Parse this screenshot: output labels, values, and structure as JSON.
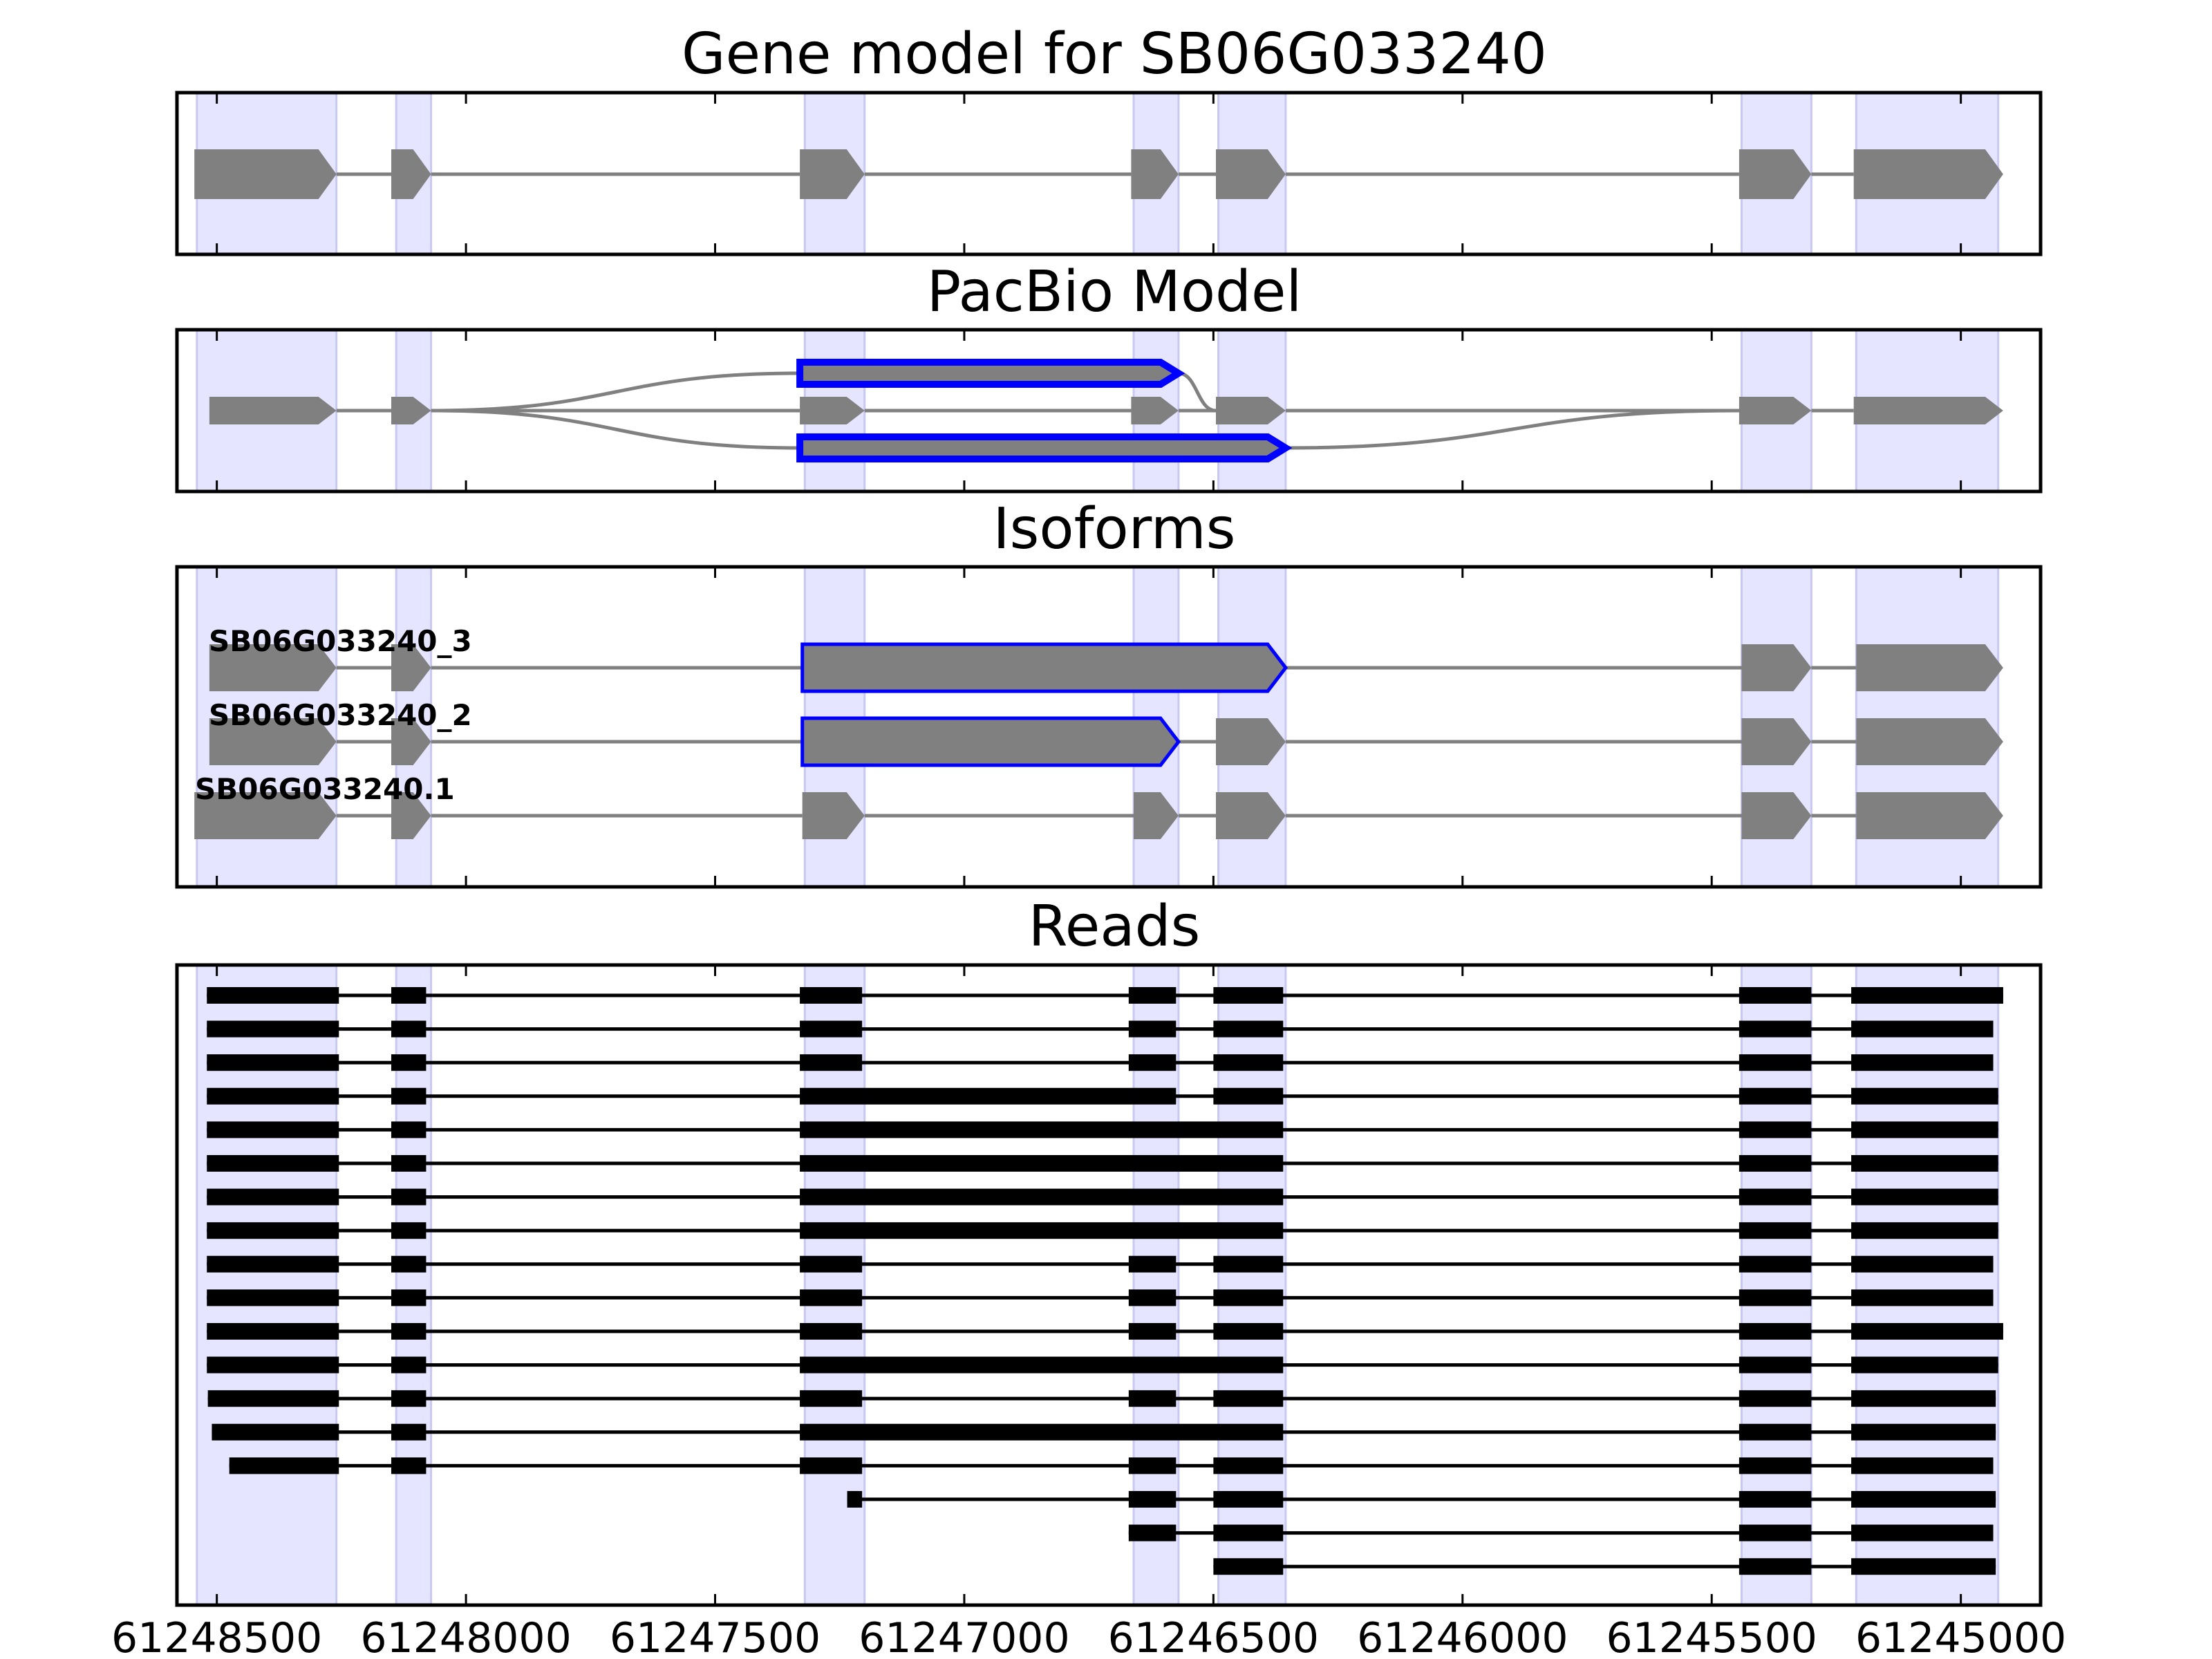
{
  "colors": {
    "exon": "#808080",
    "intron": "#808080",
    "highlight_fill": "#e5e5ff",
    "highlight_edge": "#c8c8f0",
    "novel_outline": "#0000ff",
    "read": "#000000",
    "axes": "#000000"
  },
  "chart_data": [
    {
      "type": "gene-model",
      "title": "Gene model for SB06G033240",
      "xlim": [
        61248580,
        61244840
      ],
      "xticks": [
        61248500,
        61248000,
        61247500,
        61247000,
        61246500,
        61246000,
        61245500,
        61245000
      ],
      "tick_labels": [
        "61248500",
        "61248000",
        "61247500",
        "61247000",
        "61246500",
        "61246000",
        "61245500",
        "61245000"
      ],
      "highlight_regions": [
        [
          61248540,
          61248260
        ],
        [
          61248140,
          61248070
        ],
        [
          61247320,
          61247200
        ],
        [
          61246660,
          61246570
        ],
        [
          61246490,
          61246355
        ],
        [
          61245440,
          61245300
        ],
        [
          61245210,
          61244925
        ]
      ],
      "exons": [
        [
          61248545,
          61248260
        ],
        [
          61248150,
          61248070
        ],
        [
          61247330,
          61247200
        ],
        [
          61246665,
          61246570
        ],
        [
          61246495,
          61246355
        ],
        [
          61245445,
          61245300
        ],
        [
          61245215,
          61244915
        ]
      ]
    },
    {
      "type": "pacbio-model",
      "title": "PacBio Model",
      "nodes": [
        {
          "start": 61248515,
          "end": 61248260,
          "lane": 0,
          "novel": false
        },
        {
          "start": 61248150,
          "end": 61248070,
          "lane": 0,
          "novel": false
        },
        {
          "start": 61247330,
          "end": 61246570,
          "lane": -1,
          "novel": true
        },
        {
          "start": 61247330,
          "end": 61247200,
          "lane": 0,
          "novel": false
        },
        {
          "start": 61246665,
          "end": 61246570,
          "lane": 0,
          "novel": false
        },
        {
          "start": 61246495,
          "end": 61246355,
          "lane": 0,
          "novel": false
        },
        {
          "start": 61247330,
          "end": 61246355,
          "lane": 1,
          "novel": true
        },
        {
          "start": 61245445,
          "end": 61245300,
          "lane": 0,
          "novel": false
        },
        {
          "start": 61245215,
          "end": 61244915,
          "lane": 0,
          "novel": false
        }
      ]
    },
    {
      "type": "isoforms",
      "title": "Isoforms",
      "isoforms": [
        {
          "name": "SB06G033240_3",
          "exons": [
            [
              61248515,
              61248260
            ],
            [
              61248150,
              61248070
            ],
            [
              61247325,
              61246355
            ],
            [
              61245440,
              61245300
            ],
            [
              61245210,
              61244915
            ]
          ],
          "novel": [
            2
          ]
        },
        {
          "name": "SB06G033240_2",
          "exons": [
            [
              61248515,
              61248260
            ],
            [
              61248150,
              61248070
            ],
            [
              61247325,
              61246570
            ],
            [
              61246495,
              61246355
            ],
            [
              61245440,
              61245300
            ],
            [
              61245210,
              61244915
            ]
          ],
          "novel": [
            2
          ]
        },
        {
          "name": "SB06G033240.1",
          "exons": [
            [
              61248545,
              61248260
            ],
            [
              61248150,
              61248070
            ],
            [
              61247325,
              61247200
            ],
            [
              61246660,
              61246570
            ],
            [
              61246495,
              61246355
            ],
            [
              61245440,
              61245300
            ],
            [
              61245210,
              61244915
            ]
          ],
          "novel": []
        }
      ]
    },
    {
      "type": "reads",
      "title": "Reads",
      "reads": [
        [
          [
            61248520,
            61248255
          ],
          [
            61248150,
            61248080
          ],
          [
            61247330,
            61247205
          ],
          [
            61246670,
            61246575
          ],
          [
            61246500,
            61246360
          ],
          [
            61245445,
            61245300
          ],
          [
            61245220,
            61244915
          ]
        ],
        [
          [
            61248520,
            61248255
          ],
          [
            61248150,
            61248080
          ],
          [
            61247330,
            61247205
          ],
          [
            61246670,
            61246575
          ],
          [
            61246500,
            61246360
          ],
          [
            61245445,
            61245300
          ],
          [
            61245220,
            61244935
          ]
        ],
        [
          [
            61248520,
            61248255
          ],
          [
            61248150,
            61248080
          ],
          [
            61247330,
            61247205
          ],
          [
            61246670,
            61246575
          ],
          [
            61246500,
            61246360
          ],
          [
            61245445,
            61245300
          ],
          [
            61245220,
            61244935
          ]
        ],
        [
          [
            61248520,
            61248255
          ],
          [
            61248150,
            61248080
          ],
          [
            61247330,
            61246575
          ],
          [
            61246500,
            61246360
          ],
          [
            61245445,
            61245300
          ],
          [
            61245220,
            61244925
          ]
        ],
        [
          [
            61248520,
            61248255
          ],
          [
            61248150,
            61248080
          ],
          [
            61247330,
            61246360
          ],
          [
            61245445,
            61245300
          ],
          [
            61245220,
            61244925
          ]
        ],
        [
          [
            61248520,
            61248255
          ],
          [
            61248150,
            61248080
          ],
          [
            61247330,
            61246360
          ],
          [
            61245445,
            61245300
          ],
          [
            61245220,
            61244925
          ]
        ],
        [
          [
            61248520,
            61248255
          ],
          [
            61248150,
            61248080
          ],
          [
            61247330,
            61246360
          ],
          [
            61245445,
            61245300
          ],
          [
            61245220,
            61244925
          ]
        ],
        [
          [
            61248520,
            61248255
          ],
          [
            61248150,
            61248080
          ],
          [
            61247330,
            61246360
          ],
          [
            61245445,
            61245300
          ],
          [
            61245220,
            61244925
          ]
        ],
        [
          [
            61248520,
            61248255
          ],
          [
            61248150,
            61248080
          ],
          [
            61247330,
            61247205
          ],
          [
            61246670,
            61246575
          ],
          [
            61246500,
            61246360
          ],
          [
            61245445,
            61245300
          ],
          [
            61245220,
            61244935
          ]
        ],
        [
          [
            61248520,
            61248255
          ],
          [
            61248150,
            61248080
          ],
          [
            61247330,
            61247205
          ],
          [
            61246670,
            61246575
          ],
          [
            61246500,
            61246360
          ],
          [
            61245445,
            61245300
          ],
          [
            61245220,
            61244935
          ]
        ],
        [
          [
            61248520,
            61248255
          ],
          [
            61248150,
            61248080
          ],
          [
            61247330,
            61247205
          ],
          [
            61246670,
            61246575
          ],
          [
            61246500,
            61246360
          ],
          [
            61245445,
            61245300
          ],
          [
            61245220,
            61244915
          ]
        ],
        [
          [
            61248520,
            61248255
          ],
          [
            61248150,
            61248080
          ],
          [
            61247330,
            61246360
          ],
          [
            61245445,
            61245300
          ],
          [
            61245220,
            61244925
          ]
        ],
        [
          [
            61248518,
            61248255
          ],
          [
            61248150,
            61248080
          ],
          [
            61247330,
            61247205
          ],
          [
            61246670,
            61246575
          ],
          [
            61246500,
            61246360
          ],
          [
            61245445,
            61245300
          ],
          [
            61245220,
            61244930
          ]
        ],
        [
          [
            61248510,
            61248255
          ],
          [
            61248150,
            61248080
          ],
          [
            61247330,
            61246360
          ],
          [
            61245445,
            61245300
          ],
          [
            61245220,
            61244930
          ]
        ],
        [
          [
            61248475,
            61248255
          ],
          [
            61248150,
            61248080
          ],
          [
            61247330,
            61247205
          ],
          [
            61246670,
            61246575
          ],
          [
            61246500,
            61246360
          ],
          [
            61245445,
            61245300
          ],
          [
            61245220,
            61244935
          ]
        ],
        [
          [
            61247235,
            61247205
          ],
          [
            61246670,
            61246575
          ],
          [
            61246500,
            61246360
          ],
          [
            61245445,
            61245300
          ],
          [
            61245220,
            61244930
          ]
        ],
        [
          [
            61246670,
            61246575
          ],
          [
            61246500,
            61246360
          ],
          [
            61245445,
            61245300
          ],
          [
            61245220,
            61244935
          ]
        ],
        [
          [
            61246500,
            61246360
          ],
          [
            61245445,
            61245300
          ],
          [
            61245220,
            61244930
          ]
        ]
      ]
    }
  ]
}
